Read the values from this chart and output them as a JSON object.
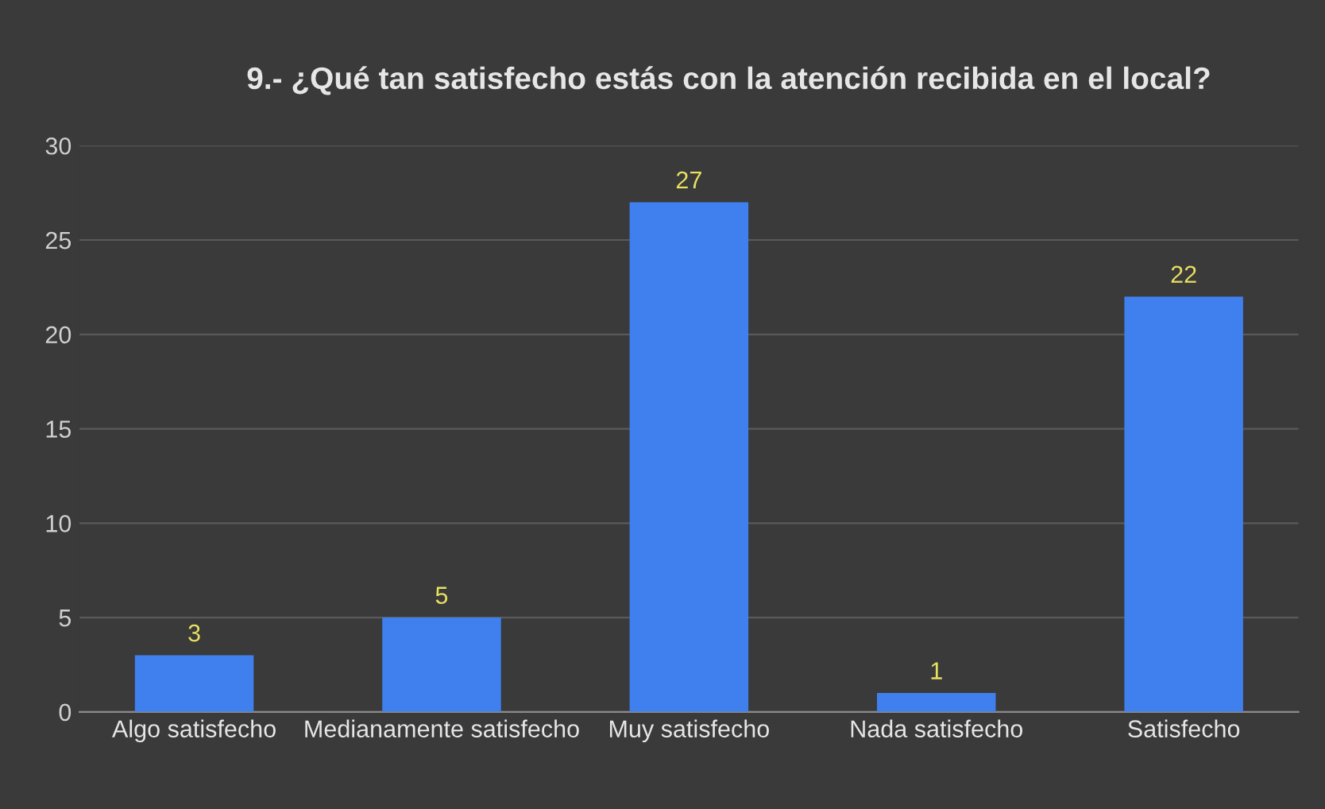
{
  "chart_data": {
    "type": "bar",
    "title": "9.- ¿Qué tan satisfecho estás con la atención recibida en el local?",
    "categories": [
      "Algo satisfecho",
      "Medianamente satisfecho",
      "Muy satisfecho",
      "Nada satisfecho",
      "Satisfecho"
    ],
    "values": [
      3,
      5,
      27,
      1,
      22
    ],
    "color": "#3f80ee",
    "ylim": [
      0,
      30
    ],
    "yticks": [
      0,
      5,
      10,
      15,
      20,
      25,
      30
    ],
    "grid": "y",
    "data_labels": true,
    "legend": false
  }
}
